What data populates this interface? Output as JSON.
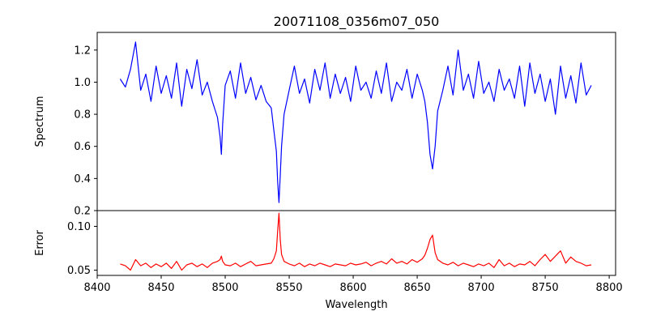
{
  "chart_data": {
    "type": "line",
    "title": "20071108_0356m07_050",
    "xlabel": "Wavelength",
    "xlim": [
      8400,
      8805
    ],
    "xticks": [
      "8400",
      "8450",
      "8500",
      "8550",
      "8600",
      "8650",
      "8700",
      "8750",
      "8800"
    ],
    "grid": false,
    "legend": "none",
    "panels": [
      {
        "ylabel": "Spectrum",
        "ylim": [
          0.2,
          1.31
        ],
        "yticks": [
          "0.2",
          "0.4",
          "0.6",
          "0.8",
          "1.0",
          "1.2"
        ],
        "series": [
          {
            "color": "#0000ff",
            "x": [
              8418,
              8422,
              8426,
              8430,
              8434,
              8438,
              8442,
              8446,
              8450,
              8454,
              8458,
              8462,
              8466,
              8470,
              8474,
              8478,
              8482,
              8486,
              8490,
              8494,
              8496,
              8497,
              8498,
              8500,
              8504,
              8508,
              8512,
              8516,
              8520,
              8524,
              8528,
              8532,
              8536,
              8538,
              8540,
              8541,
              8542,
              8543,
              8544,
              8546,
              8550,
              8554,
              8558,
              8562,
              8566,
              8570,
              8574,
              8578,
              8582,
              8586,
              8590,
              8594,
              8598,
              8602,
              8606,
              8610,
              8614,
              8618,
              8622,
              8626,
              8630,
              8634,
              8638,
              8642,
              8646,
              8650,
              8654,
              8656,
              8658,
              8660,
              8662,
              8664,
              8666,
              8670,
              8674,
              8678,
              8682,
              8686,
              8690,
              8694,
              8698,
              8702,
              8706,
              8710,
              8714,
              8718,
              8722,
              8726,
              8730,
              8734,
              8738,
              8742,
              8746,
              8750,
              8754,
              8758,
              8762,
              8766,
              8770,
              8774,
              8778,
              8782,
              8786
            ],
            "y": [
              1.02,
              0.97,
              1.08,
              1.25,
              0.95,
              1.05,
              0.88,
              1.1,
              0.93,
              1.04,
              0.9,
              1.12,
              0.85,
              1.08,
              0.96,
              1.14,
              0.92,
              1.0,
              0.88,
              0.78,
              0.66,
              0.55,
              0.74,
              0.98,
              1.07,
              0.9,
              1.12,
              0.93,
              1.03,
              0.89,
              0.98,
              0.88,
              0.84,
              0.7,
              0.57,
              0.38,
              0.25,
              0.42,
              0.6,
              0.8,
              0.95,
              1.1,
              0.93,
              1.02,
              0.87,
              1.08,
              0.95,
              1.12,
              0.9,
              1.05,
              0.93,
              1.03,
              0.88,
              1.1,
              0.95,
              1.0,
              0.9,
              1.07,
              0.93,
              1.12,
              0.88,
              1.0,
              0.95,
              1.08,
              0.9,
              1.05,
              0.95,
              0.88,
              0.75,
              0.55,
              0.46,
              0.6,
              0.82,
              0.95,
              1.1,
              0.92,
              1.2,
              0.95,
              1.05,
              0.9,
              1.13,
              0.93,
              1.0,
              0.88,
              1.08,
              0.95,
              1.02,
              0.9,
              1.1,
              0.85,
              1.12,
              0.93,
              1.05,
              0.88,
              1.02,
              0.8,
              1.1,
              0.9,
              1.04,
              0.87,
              1.12,
              0.92,
              0.98
            ]
          }
        ]
      },
      {
        "ylabel": "Error",
        "ylim": [
          0.044,
          0.118
        ],
        "yticks": [
          "0.05",
          "0.10"
        ],
        "series": [
          {
            "color": "#ff0000",
            "x": [
              8418,
              8422,
              8426,
              8430,
              8434,
              8438,
              8442,
              8446,
              8450,
              8454,
              8458,
              8462,
              8466,
              8470,
              8474,
              8478,
              8482,
              8486,
              8490,
              8494,
              8496,
              8497,
              8498,
              8500,
              8504,
              8508,
              8512,
              8516,
              8520,
              8524,
              8528,
              8532,
              8536,
              8538,
              8540,
              8541,
              8542,
              8543,
              8544,
              8546,
              8550,
              8554,
              8558,
              8562,
              8566,
              8570,
              8574,
              8578,
              8582,
              8586,
              8590,
              8594,
              8598,
              8602,
              8606,
              8610,
              8614,
              8618,
              8622,
              8626,
              8630,
              8634,
              8638,
              8642,
              8646,
              8650,
              8654,
              8656,
              8658,
              8660,
              8662,
              8664,
              8666,
              8670,
              8674,
              8678,
              8682,
              8686,
              8690,
              8694,
              8698,
              8702,
              8706,
              8710,
              8714,
              8718,
              8722,
              8726,
              8730,
              8734,
              8738,
              8742,
              8746,
              8750,
              8754,
              8758,
              8762,
              8766,
              8770,
              8774,
              8778,
              8782,
              8786
            ],
            "y": [
              0.057,
              0.055,
              0.05,
              0.062,
              0.055,
              0.058,
              0.053,
              0.057,
              0.054,
              0.058,
              0.052,
              0.06,
              0.05,
              0.056,
              0.058,
              0.054,
              0.057,
              0.053,
              0.058,
              0.06,
              0.062,
              0.066,
              0.06,
              0.056,
              0.055,
              0.058,
              0.054,
              0.057,
              0.06,
              0.055,
              0.056,
              0.057,
              0.058,
              0.063,
              0.072,
              0.095,
              0.115,
              0.085,
              0.068,
              0.06,
              0.057,
              0.055,
              0.058,
              0.054,
              0.057,
              0.055,
              0.058,
              0.056,
              0.054,
              0.057,
              0.056,
              0.055,
              0.058,
              0.056,
              0.057,
              0.059,
              0.055,
              0.058,
              0.06,
              0.057,
              0.063,
              0.058,
              0.06,
              0.057,
              0.062,
              0.059,
              0.063,
              0.067,
              0.075,
              0.085,
              0.09,
              0.07,
              0.062,
              0.058,
              0.056,
              0.059,
              0.055,
              0.058,
              0.056,
              0.054,
              0.057,
              0.055,
              0.058,
              0.053,
              0.062,
              0.055,
              0.058,
              0.054,
              0.057,
              0.056,
              0.06,
              0.055,
              0.062,
              0.068,
              0.06,
              0.066,
              0.072,
              0.058,
              0.065,
              0.06,
              0.058,
              0.055,
              0.056
            ]
          }
        ]
      }
    ]
  }
}
